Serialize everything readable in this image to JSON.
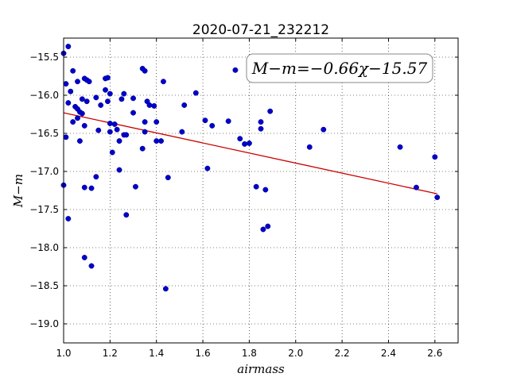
{
  "chart_data": {
    "type": "scatter",
    "title": "2020-07-21_232212",
    "xlabel": "airmass",
    "ylabel": "M−m",
    "xlim": [
      1.0,
      2.7
    ],
    "ylim": [
      -19.25,
      -15.25
    ],
    "xticks": [
      "1.0",
      "1.2",
      "1.4",
      "1.6",
      "1.8",
      "2.0",
      "2.2",
      "2.4",
      "2.6"
    ],
    "xtick_values": [
      1.0,
      1.2,
      1.4,
      1.6,
      1.8,
      2.0,
      2.2,
      2.4,
      2.6
    ],
    "yticks": [
      "−15.5",
      "−16.0",
      "−16.5",
      "−17.0",
      "−17.5",
      "−18.0",
      "−18.5",
      "−19.0"
    ],
    "ytick_values": [
      -15.5,
      -16.0,
      -16.5,
      -17.0,
      -17.5,
      -18.0,
      -18.5,
      -19.0
    ],
    "grid": true,
    "annotation": "M−m=−0.66χ−15.57",
    "fit": {
      "slope": -0.66,
      "intercept": -15.57,
      "x_range": [
        1.0,
        2.61
      ],
      "color": "#cc0000"
    },
    "series": [
      {
        "color": "#0000cc",
        "points": [
          [
            1.0,
            -15.45
          ],
          [
            1.02,
            -15.36
          ],
          [
            1.01,
            -15.85
          ],
          [
            1.03,
            -15.95
          ],
          [
            1.04,
            -15.68
          ],
          [
            1.02,
            -16.1
          ],
          [
            1.01,
            -16.55
          ],
          [
            1.0,
            -17.18
          ],
          [
            1.02,
            -17.62
          ],
          [
            1.04,
            -16.35
          ],
          [
            1.05,
            -16.15
          ],
          [
            1.06,
            -16.18
          ],
          [
            1.07,
            -16.22
          ],
          [
            1.06,
            -16.3
          ],
          [
            1.08,
            -16.24
          ],
          [
            1.07,
            -16.6
          ],
          [
            1.06,
            -15.82
          ],
          [
            1.08,
            -16.05
          ],
          [
            1.09,
            -15.78
          ],
          [
            1.1,
            -15.8
          ],
          [
            1.1,
            -16.08
          ],
          [
            1.11,
            -15.82
          ],
          [
            1.09,
            -16.4
          ],
          [
            1.09,
            -17.21
          ],
          [
            1.12,
            -17.22
          ],
          [
            1.09,
            -18.13
          ],
          [
            1.12,
            -18.24
          ],
          [
            1.14,
            -16.03
          ],
          [
            1.16,
            -16.13
          ],
          [
            1.15,
            -16.46
          ],
          [
            1.14,
            -17.07
          ],
          [
            1.18,
            -15.78
          ],
          [
            1.18,
            -15.93
          ],
          [
            1.19,
            -15.77
          ],
          [
            1.19,
            -16.08
          ],
          [
            1.2,
            -15.98
          ],
          [
            1.2,
            -16.37
          ],
          [
            1.2,
            -16.48
          ],
          [
            1.21,
            -16.75
          ],
          [
            1.22,
            -16.38
          ],
          [
            1.23,
            -16.45
          ],
          [
            1.24,
            -16.6
          ],
          [
            1.24,
            -16.98
          ],
          [
            1.25,
            -16.05
          ],
          [
            1.26,
            -15.98
          ],
          [
            1.26,
            -16.52
          ],
          [
            1.27,
            -16.52
          ],
          [
            1.27,
            -17.57
          ],
          [
            1.3,
            -16.04
          ],
          [
            1.3,
            -16.23
          ],
          [
            1.31,
            -17.2
          ],
          [
            1.34,
            -15.65
          ],
          [
            1.35,
            -15.68
          ],
          [
            1.34,
            -16.7
          ],
          [
            1.35,
            -16.35
          ],
          [
            1.35,
            -16.48
          ],
          [
            1.36,
            -16.08
          ],
          [
            1.37,
            -16.13
          ],
          [
            1.39,
            -16.14
          ],
          [
            1.4,
            -16.35
          ],
          [
            1.4,
            -16.6
          ],
          [
            1.42,
            -16.6
          ],
          [
            1.43,
            -15.82
          ],
          [
            1.44,
            -18.54
          ],
          [
            1.45,
            -17.08
          ],
          [
            1.51,
            -16.48
          ],
          [
            1.52,
            -16.13
          ],
          [
            1.57,
            -15.97
          ],
          [
            1.61,
            -16.33
          ],
          [
            1.62,
            -16.96
          ],
          [
            1.64,
            -16.4
          ],
          [
            1.71,
            -16.34
          ],
          [
            1.74,
            -15.67
          ],
          [
            1.76,
            -16.57
          ],
          [
            1.78,
            -16.64
          ],
          [
            1.8,
            -16.63
          ],
          [
            1.83,
            -17.2
          ],
          [
            1.85,
            -16.44
          ],
          [
            1.85,
            -16.35
          ],
          [
            1.86,
            -17.76
          ],
          [
            1.87,
            -17.24
          ],
          [
            1.88,
            -17.72
          ],
          [
            1.89,
            -16.21
          ],
          [
            2.06,
            -16.68
          ],
          [
            2.12,
            -16.45
          ],
          [
            2.45,
            -16.68
          ],
          [
            2.52,
            -17.21
          ],
          [
            2.6,
            -16.81
          ],
          [
            2.61,
            -17.34
          ]
        ]
      }
    ]
  }
}
